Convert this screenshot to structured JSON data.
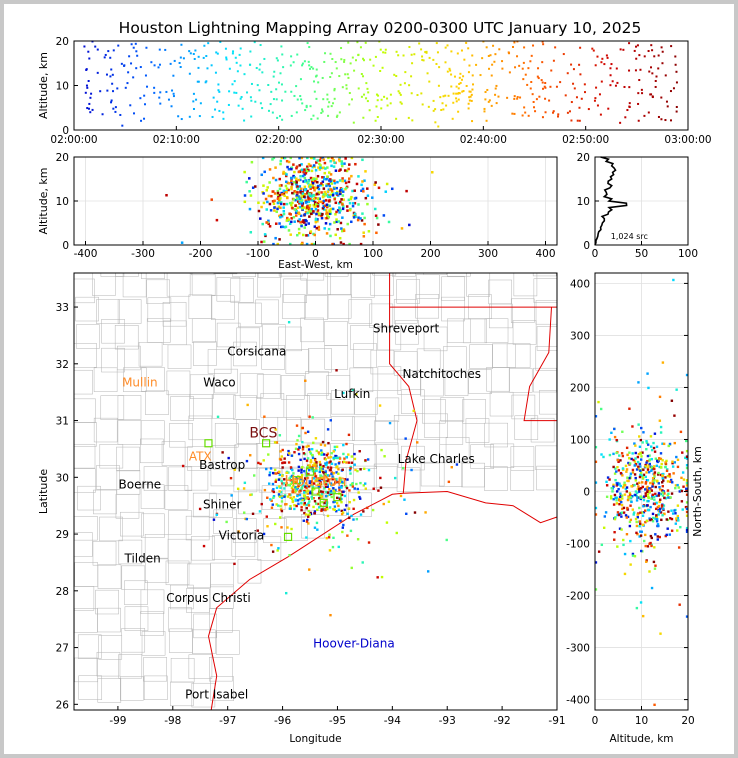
{
  "title": "Houston Lightning Mapping Array 0200-0300 UTC January 10, 2025",
  "colors": {
    "axis": "#000000",
    "grid": "#e0e0e0",
    "county_lines": "#b4b4b4",
    "state_lines": "#e00000",
    "city_label": "#000000",
    "station_label": "#ff8c28",
    "special_label": "#0000cc",
    "station_marker": "#66dd00"
  },
  "chart_data": [
    {
      "panel": "time-altitude",
      "type": "scatter",
      "xlabel": "",
      "ylabel": "Altitude, km",
      "xlim": [
        "02:00:00",
        "03:00:00"
      ],
      "ylim": [
        0,
        20
      ],
      "xticks": [
        "02:00:00",
        "02:10:00",
        "02:20:00",
        "02:30:00",
        "02:40:00",
        "02:50:00",
        "03:00:00"
      ],
      "yticks": [
        0,
        10,
        20
      ],
      "color_by": "time",
      "colormap": [
        "#0000cc",
        "#0060ff",
        "#00e0ff",
        "#40ff90",
        "#c0ff00",
        "#ffd000",
        "#ff6000",
        "#cc0000",
        "#800000"
      ],
      "source_density": [
        {
          "minute": 2,
          "count": 22
        },
        {
          "minute": 4,
          "count": 24
        },
        {
          "minute": 6,
          "count": 20
        },
        {
          "minute": 8,
          "count": 14
        },
        {
          "minute": 10,
          "count": 16
        },
        {
          "minute": 12,
          "count": 22
        },
        {
          "minute": 14,
          "count": 20
        },
        {
          "minute": 16,
          "count": 22
        },
        {
          "minute": 18,
          "count": 20
        },
        {
          "minute": 20,
          "count": 22
        },
        {
          "minute": 22,
          "count": 24
        },
        {
          "minute": 24,
          "count": 26
        },
        {
          "minute": 26,
          "count": 28
        },
        {
          "minute": 28,
          "count": 26
        },
        {
          "minute": 30,
          "count": 22
        },
        {
          "minute": 32,
          "count": 20
        },
        {
          "minute": 34,
          "count": 18
        },
        {
          "minute": 36,
          "count": 28
        },
        {
          "minute": 38,
          "count": 44
        },
        {
          "minute": 40,
          "count": 20
        },
        {
          "minute": 42,
          "count": 16
        },
        {
          "minute": 44,
          "count": 30
        },
        {
          "minute": 46,
          "count": 24
        },
        {
          "minute": 48,
          "count": 16
        },
        {
          "minute": 50,
          "count": 16
        },
        {
          "minute": 52,
          "count": 18
        },
        {
          "minute": 54,
          "count": 18
        },
        {
          "minute": 56,
          "count": 26
        },
        {
          "minute": 58,
          "count": 22
        }
      ]
    },
    {
      "panel": "east-west-altitude",
      "type": "scatter",
      "xlabel": "East-West, km",
      "ylabel": "Altitude, km",
      "xlim": [
        -420,
        420
      ],
      "ylim": [
        0,
        20
      ],
      "xticks": [
        -400,
        -300,
        -200,
        -100,
        0,
        100,
        200,
        300,
        400
      ],
      "yticks": [
        0,
        10,
        20
      ],
      "cluster": {
        "x_center": -5,
        "x_spread": 45,
        "alt_center": 11,
        "alt_spread": 5
      }
    },
    {
      "panel": "altitude-histogram",
      "type": "line",
      "xlim": [
        0,
        100
      ],
      "ylim": [
        0,
        20
      ],
      "xticks": [
        0,
        50,
        100
      ],
      "yticks": [
        0,
        10,
        20
      ],
      "annotation": "1,024 src",
      "profile": [
        {
          "alt": 0,
          "count": 0
        },
        {
          "alt": 1,
          "count": 1
        },
        {
          "alt": 2,
          "count": 3
        },
        {
          "alt": 3,
          "count": 4
        },
        {
          "alt": 4,
          "count": 6
        },
        {
          "alt": 5,
          "count": 8
        },
        {
          "alt": 6,
          "count": 10
        },
        {
          "alt": 7,
          "count": 14
        },
        {
          "alt": 8,
          "count": 18
        },
        {
          "alt": 9,
          "count": 34
        },
        {
          "alt": 10,
          "count": 15
        },
        {
          "alt": 11,
          "count": 10
        },
        {
          "alt": 12,
          "count": 12
        },
        {
          "alt": 13,
          "count": 16
        },
        {
          "alt": 14,
          "count": 14
        },
        {
          "alt": 15,
          "count": 18
        },
        {
          "alt": 16,
          "count": 20
        },
        {
          "alt": 17,
          "count": 22
        },
        {
          "alt": 18,
          "count": 18
        },
        {
          "alt": 19,
          "count": 12
        },
        {
          "alt": 20,
          "count": 6
        }
      ]
    },
    {
      "panel": "plan-view-map",
      "type": "scatter",
      "xlabel": "Longitude",
      "ylabel": "Latitude",
      "xlim": [
        -99.8,
        -91.0
      ],
      "ylim": [
        25.9,
        33.6
      ],
      "xticks": [
        -99,
        -98,
        -97,
        -96,
        -95,
        -94,
        -93,
        -92,
        -91
      ],
      "yticks": [
        26,
        27,
        28,
        29,
        30,
        31,
        32,
        33
      ],
      "cluster": {
        "lon_center": -95.45,
        "lon_spread": 0.45,
        "lat_center": 29.9,
        "lat_spread": 0.35
      },
      "labels": [
        {
          "text": "Shreveport",
          "lon": -93.75,
          "lat": 32.55,
          "style": "city"
        },
        {
          "text": "Corsicana",
          "lon": -96.47,
          "lat": 32.15,
          "style": "city"
        },
        {
          "text": "Natchitoches",
          "lon": -93.1,
          "lat": 31.75,
          "style": "city"
        },
        {
          "text": "Mullin",
          "lon": -98.6,
          "lat": 31.6,
          "style": "station"
        },
        {
          "text": "Waco",
          "lon": -97.15,
          "lat": 31.6,
          "style": "city"
        },
        {
          "text": "Lufkin",
          "lon": -94.73,
          "lat": 31.4,
          "style": "city"
        },
        {
          "text": "BCS",
          "lon": -96.35,
          "lat": 30.7,
          "style": "station_dark"
        },
        {
          "text": "ATX",
          "lon": -97.5,
          "lat": 30.3,
          "style": "station"
        },
        {
          "text": "Bastrop",
          "lon": -97.1,
          "lat": 30.15,
          "style": "city"
        },
        {
          "text": "Lake Charles",
          "lon": -93.2,
          "lat": 30.25,
          "style": "city"
        },
        {
          "text": "Houston",
          "lon": -95.4,
          "lat": 29.85,
          "style": "station"
        },
        {
          "text": "Boerne",
          "lon": -98.6,
          "lat": 29.8,
          "style": "city"
        },
        {
          "text": "Shiner",
          "lon": -97.1,
          "lat": 29.45,
          "style": "city"
        },
        {
          "text": "Victoria",
          "lon": -96.75,
          "lat": 28.9,
          "style": "city"
        },
        {
          "text": "Tilden",
          "lon": -98.55,
          "lat": 28.5,
          "style": "city"
        },
        {
          "text": "Corpus Christi",
          "lon": -97.35,
          "lat": 27.8,
          "style": "city"
        },
        {
          "text": "Hoover-Diana",
          "lon": -94.7,
          "lat": 27.0,
          "style": "special"
        },
        {
          "text": "Port Isabel",
          "lon": -97.2,
          "lat": 26.1,
          "style": "city"
        }
      ],
      "stations": [
        {
          "lon": -97.35,
          "lat": 30.6
        },
        {
          "lon": -96.3,
          "lat": 30.6
        },
        {
          "lon": -95.75,
          "lat": 29.95
        },
        {
          "lon": -95.4,
          "lat": 29.75
        },
        {
          "lon": -95.25,
          "lat": 29.55
        },
        {
          "lon": -95.0,
          "lat": 29.65
        },
        {
          "lon": -95.9,
          "lat": 28.95
        },
        {
          "lon": -95.5,
          "lat": 30.1
        }
      ]
    },
    {
      "panel": "altitude-north-south",
      "type": "scatter",
      "xlabel": "Altitude, km",
      "ylabel": "North-South, km",
      "xlim": [
        0,
        20
      ],
      "ylim": [
        -420,
        420
      ],
      "xticks": [
        0,
        10,
        20
      ],
      "yticks": [
        -400,
        -300,
        -200,
        -100,
        0,
        100,
        200,
        300,
        400
      ],
      "cluster": {
        "ns_center": 0,
        "ns_spread": 55,
        "alt_center": 11,
        "alt_spread": 5
      }
    }
  ]
}
